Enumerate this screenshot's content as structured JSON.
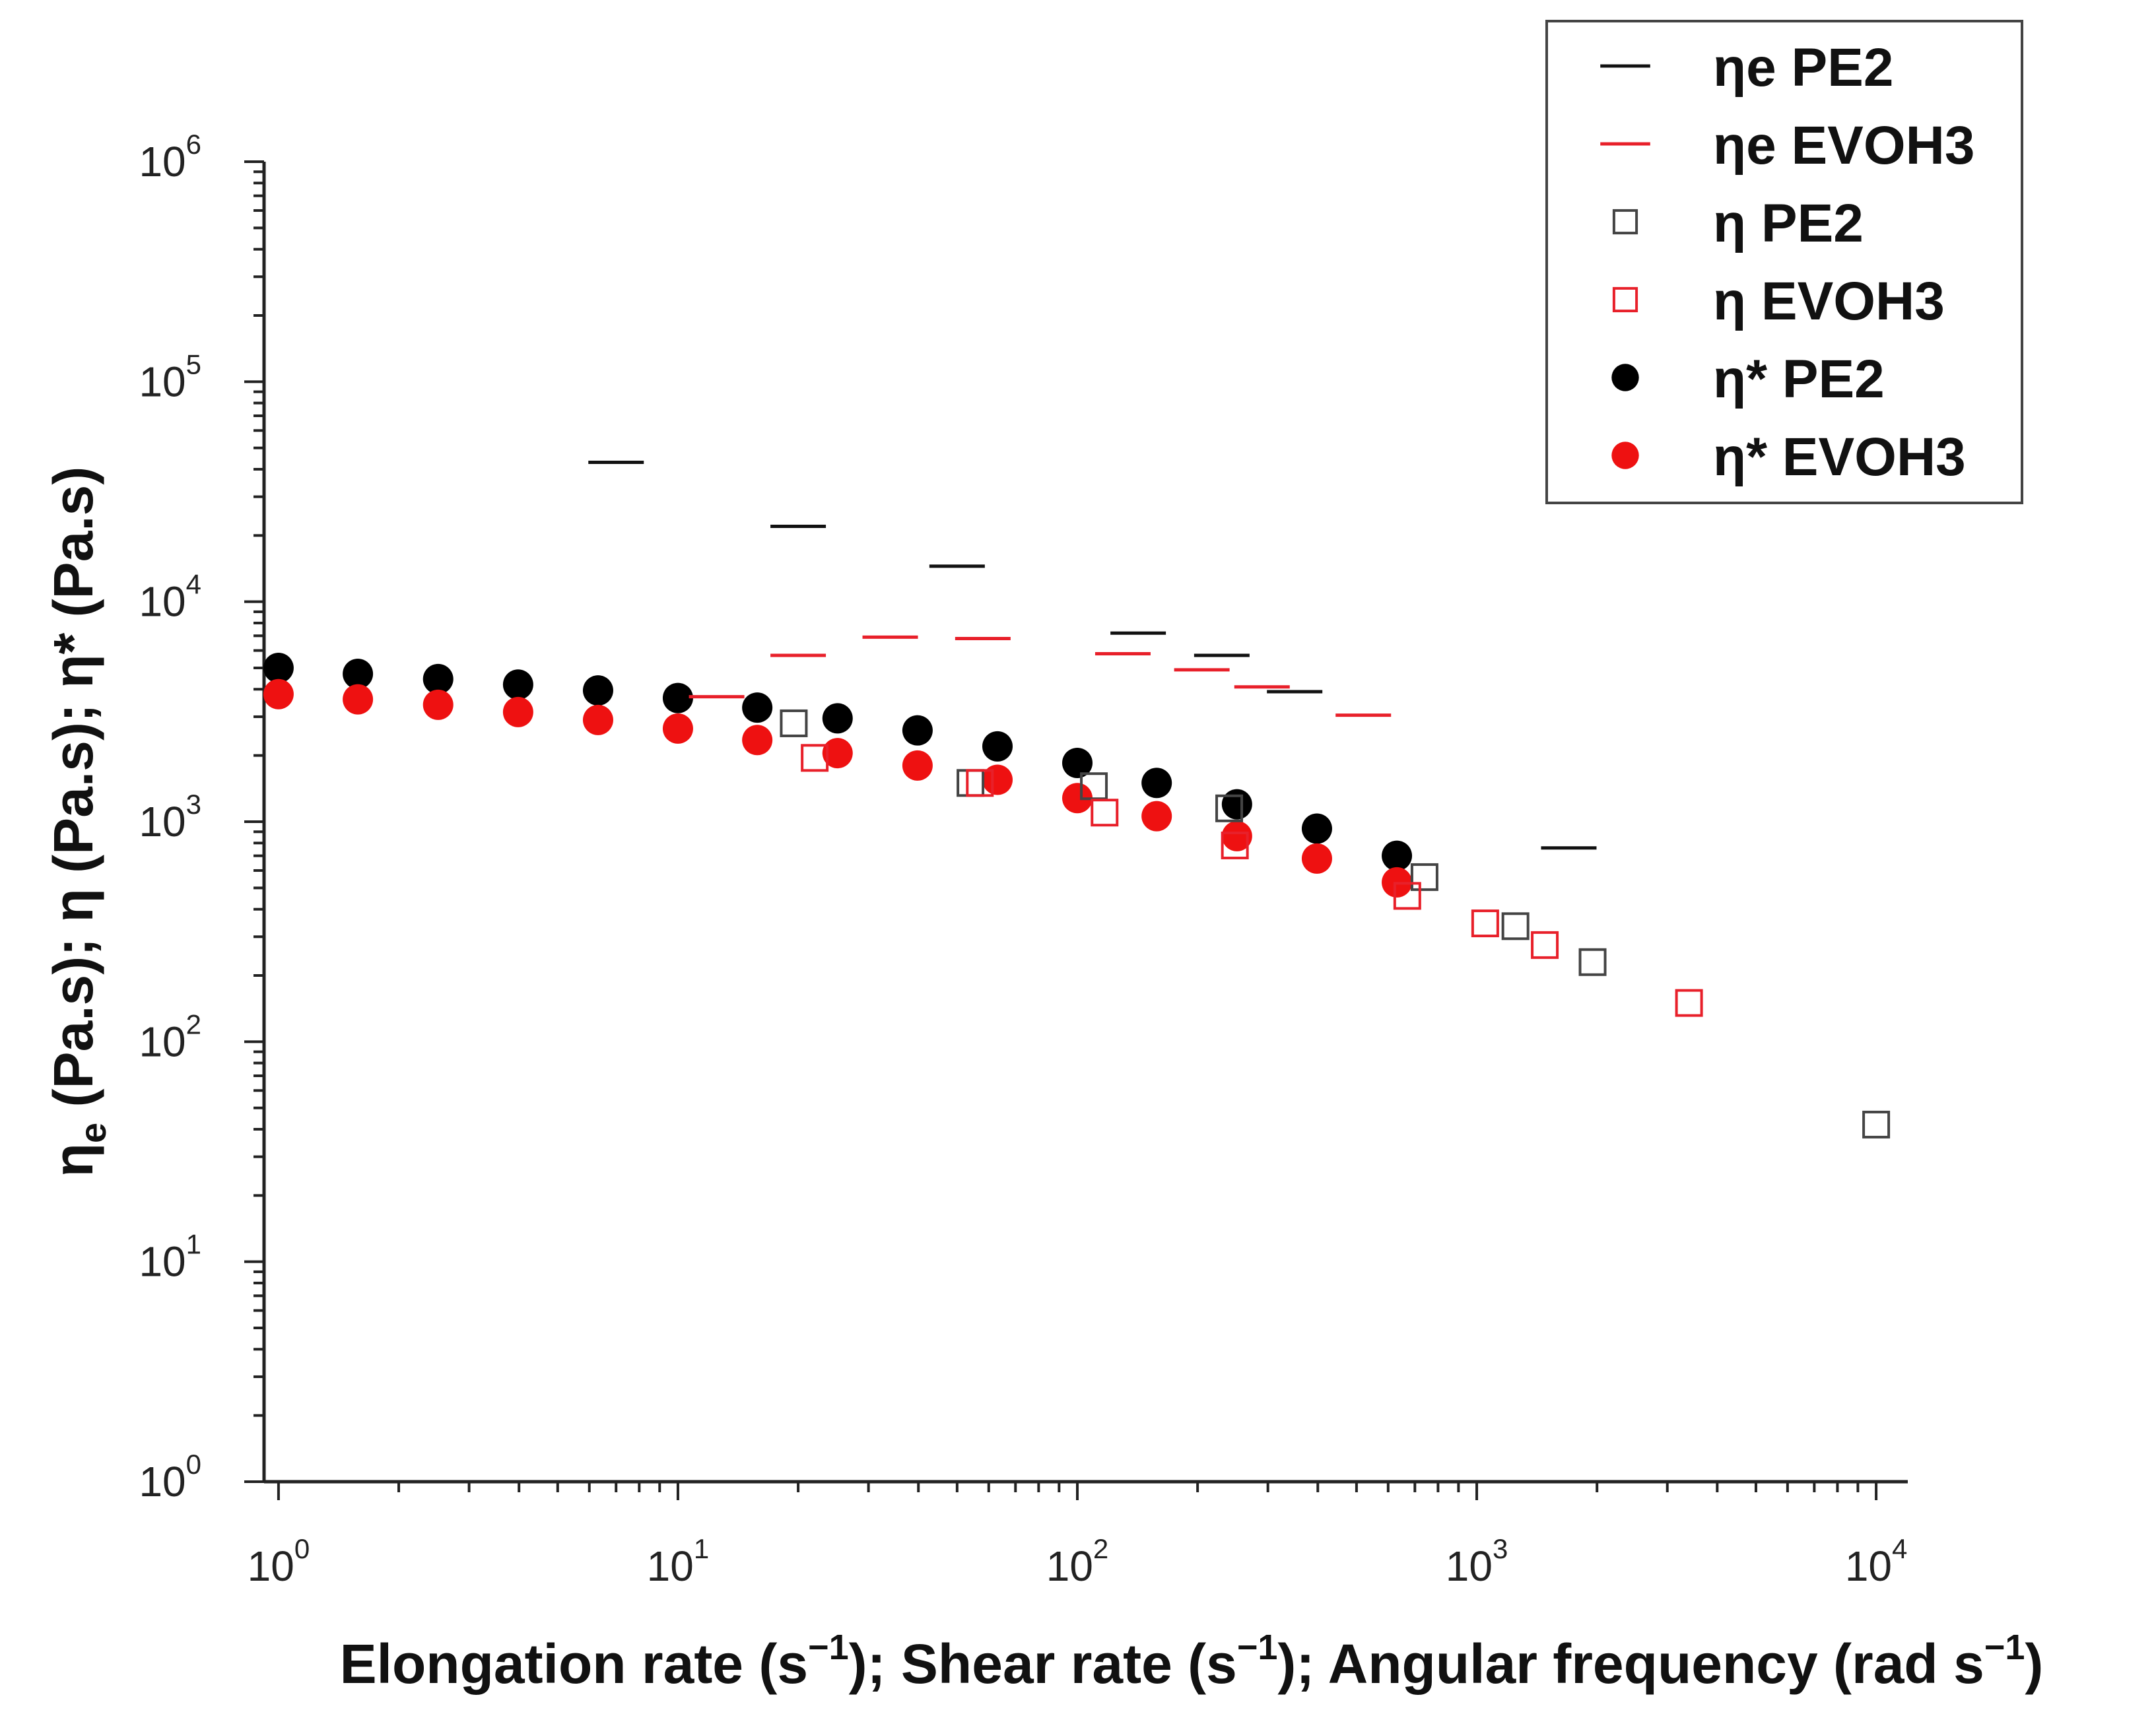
{
  "chart_data": {
    "type": "scatter",
    "title": "",
    "xlabel": {
      "parts": [
        {
          "text": "Elongation rate (s"
        },
        {
          "text": "−1",
          "sup": true
        },
        {
          "text": "); Shear rate (s"
        },
        {
          "text": "−1",
          "sup": true
        },
        {
          "text": "); Angular frequency (rad s"
        },
        {
          "text": "−1",
          "sup": true
        },
        {
          "text": ")"
        }
      ]
    },
    "ylabel": {
      "parts": [
        {
          "text": "η"
        },
        {
          "text": "e",
          "sub": true
        },
        {
          "text": " (Pa.s); η (Pa.s); η* (Pa.s)"
        }
      ]
    },
    "x_scale": "log",
    "y_scale": "log",
    "xlim": [
      0.92,
      12000
    ],
    "ylim": [
      1,
      1000000
    ],
    "x_ticks": [
      {
        "value": 1,
        "base": "10",
        "exp": "0"
      },
      {
        "value": 10,
        "base": "10",
        "exp": "1"
      },
      {
        "value": 100,
        "base": "10",
        "exp": "2"
      },
      {
        "value": 1000,
        "base": "10",
        "exp": "3"
      },
      {
        "value": 10000,
        "base": "10",
        "exp": "4"
      }
    ],
    "y_ticks": [
      {
        "value": 1,
        "base": "10",
        "exp": "0"
      },
      {
        "value": 10,
        "base": "10",
        "exp": "1"
      },
      {
        "value": 100,
        "base": "10",
        "exp": "2"
      },
      {
        "value": 1000,
        "base": "10",
        "exp": "3"
      },
      {
        "value": 10000,
        "base": "10",
        "exp": "4"
      },
      {
        "value": 100000,
        "base": "10",
        "exp": "5"
      },
      {
        "value": 1000000,
        "base": "10",
        "exp": "6"
      }
    ],
    "grid": false,
    "legend_position": "top-right",
    "series": [
      {
        "name": "ηe PE2",
        "marker": "dash",
        "color": "#111111",
        "points": [
          {
            "x": 7,
            "y": 43000
          },
          {
            "x": 20,
            "y": 22000
          },
          {
            "x": 50,
            "y": 14500
          },
          {
            "x": 142,
            "y": 7200
          },
          {
            "x": 230,
            "y": 5700
          },
          {
            "x": 350,
            "y": 3900
          },
          {
            "x": 1700,
            "y": 760
          }
        ]
      },
      {
        "name": "ηe EVOH3",
        "marker": "dash",
        "color": "#e8202a",
        "points": [
          {
            "x": 12.5,
            "y": 3700
          },
          {
            "x": 20,
            "y": 5700
          },
          {
            "x": 34,
            "y": 6900
          },
          {
            "x": 58,
            "y": 6800
          },
          {
            "x": 130,
            "y": 5800
          },
          {
            "x": 205,
            "y": 4900
          },
          {
            "x": 290,
            "y": 4100
          },
          {
            "x": 520,
            "y": 3050
          }
        ]
      },
      {
        "name": "η PE2",
        "marker": "open-square",
        "color": "#444444",
        "points": [
          {
            "x": 19.5,
            "y": 2800
          },
          {
            "x": 54,
            "y": 1500
          },
          {
            "x": 110,
            "y": 1450
          },
          {
            "x": 240,
            "y": 1150
          },
          {
            "x": 740,
            "y": 560
          },
          {
            "x": 1250,
            "y": 335
          },
          {
            "x": 1950,
            "y": 230
          },
          {
            "x": 10000,
            "y": 42
          }
        ]
      },
      {
        "name": "η EVOH3",
        "marker": "open-square",
        "color": "#e8202a",
        "points": [
          {
            "x": 22,
            "y": 1950
          },
          {
            "x": 57,
            "y": 1500
          },
          {
            "x": 117,
            "y": 1100
          },
          {
            "x": 248,
            "y": 780
          },
          {
            "x": 670,
            "y": 460
          },
          {
            "x": 1050,
            "y": 345
          },
          {
            "x": 1480,
            "y": 275
          },
          {
            "x": 3400,
            "y": 150
          }
        ]
      },
      {
        "name": "η* PE2",
        "marker": "filled-circle",
        "color": "#000000",
        "points": [
          {
            "x": 1,
            "y": 5000
          },
          {
            "x": 1.58,
            "y": 4700
          },
          {
            "x": 2.51,
            "y": 4450
          },
          {
            "x": 3.98,
            "y": 4200
          },
          {
            "x": 6.31,
            "y": 3950
          },
          {
            "x": 10,
            "y": 3650
          },
          {
            "x": 15.8,
            "y": 3300
          },
          {
            "x": 25.1,
            "y": 2950
          },
          {
            "x": 39.8,
            "y": 2600
          },
          {
            "x": 63.1,
            "y": 2200
          },
          {
            "x": 100,
            "y": 1850
          },
          {
            "x": 158,
            "y": 1500
          },
          {
            "x": 251,
            "y": 1200
          },
          {
            "x": 398,
            "y": 930
          },
          {
            "x": 631,
            "y": 700
          }
        ]
      },
      {
        "name": "η* EVOH3",
        "marker": "filled-circle",
        "color": "#ee1111",
        "points": [
          {
            "x": 1,
            "y": 3800
          },
          {
            "x": 1.58,
            "y": 3600
          },
          {
            "x": 2.51,
            "y": 3400
          },
          {
            "x": 3.98,
            "y": 3150
          },
          {
            "x": 6.31,
            "y": 2900
          },
          {
            "x": 10,
            "y": 2650
          },
          {
            "x": 15.8,
            "y": 2350
          },
          {
            "x": 25.1,
            "y": 2050
          },
          {
            "x": 39.8,
            "y": 1800
          },
          {
            "x": 63.1,
            "y": 1550
          },
          {
            "x": 100,
            "y": 1280
          },
          {
            "x": 158,
            "y": 1060
          },
          {
            "x": 251,
            "y": 860
          },
          {
            "x": 398,
            "y": 680
          },
          {
            "x": 631,
            "y": 530
          }
        ]
      }
    ]
  }
}
